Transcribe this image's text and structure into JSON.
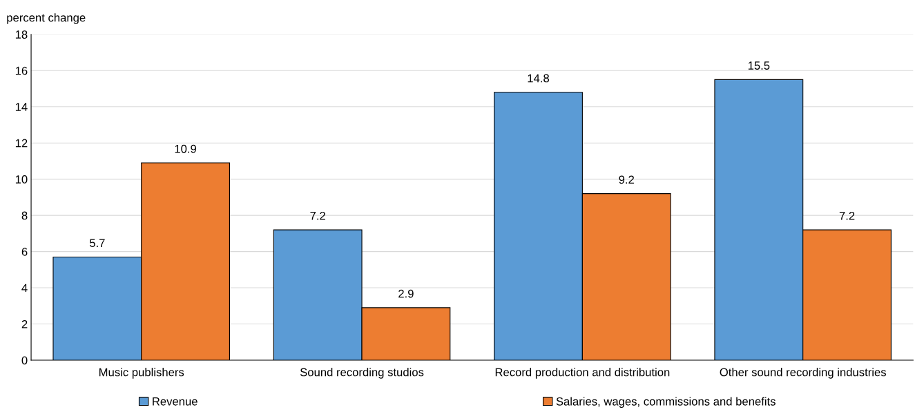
{
  "chart_data": {
    "type": "bar",
    "ylabel": "percent change",
    "categories": [
      "Music publishers",
      "Sound recording studios",
      "Record production and distribution",
      "Other sound recording industries"
    ],
    "series": [
      {
        "name": "Revenue",
        "color": "#5b9bd5",
        "values": [
          5.7,
          7.2,
          14.8,
          15.5
        ]
      },
      {
        "name": "Salaries, wages, commissions and benefits",
        "color": "#ed7d31",
        "values": [
          10.9,
          2.9,
          9.2,
          7.2
        ]
      }
    ],
    "ylim": [
      0,
      18
    ],
    "yticks": [
      0,
      2,
      4,
      6,
      8,
      10,
      12,
      14,
      16,
      18
    ],
    "grid": "y",
    "legend": "bottom",
    "data_labels": true
  }
}
